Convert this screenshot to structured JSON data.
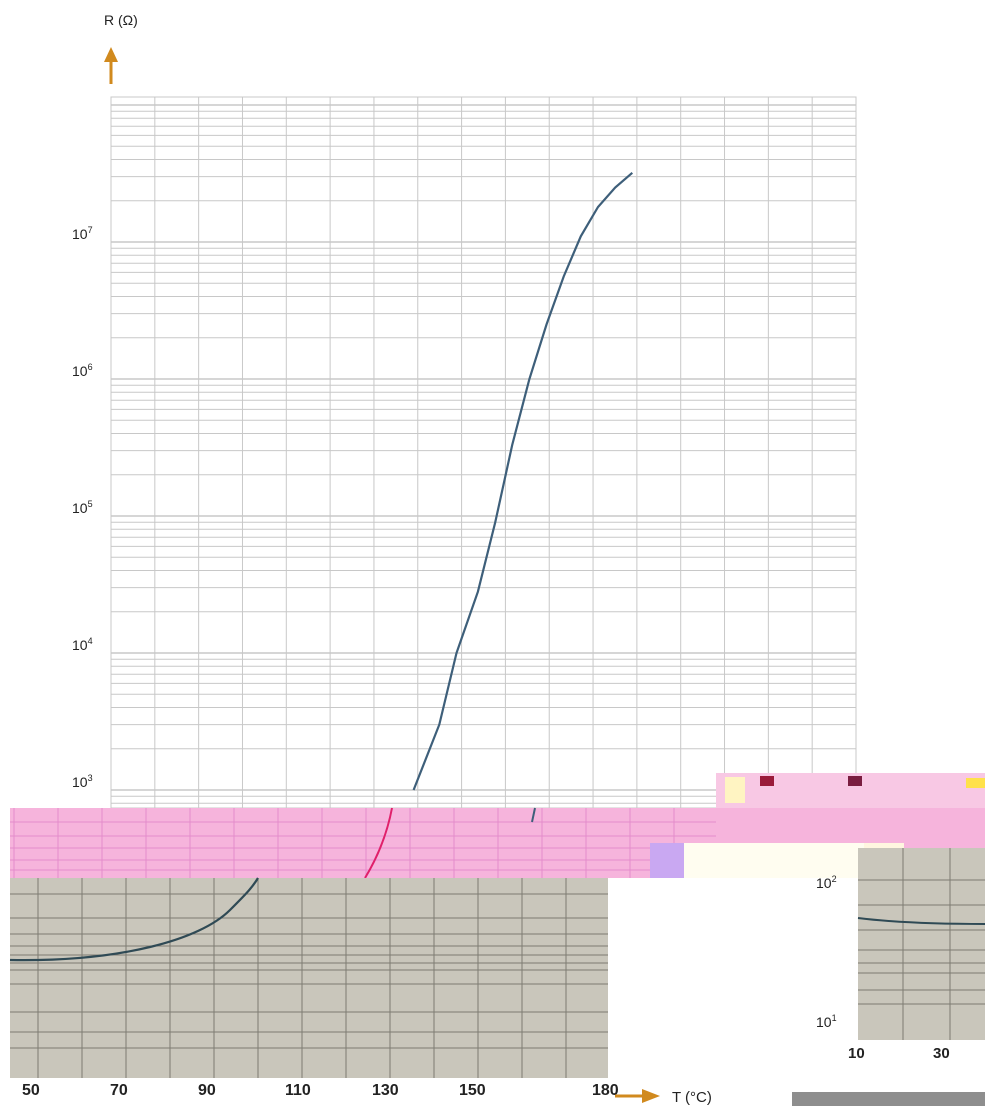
{
  "colors": {
    "arrow": "#d18a1e",
    "grid": "#c8c8c8",
    "curve": "#3e5f7a",
    "pink_band": "#f6b4dc",
    "pink_curve": "#e0206a",
    "gray_panel": "#c9c6bb",
    "gray_grid": "#7d7b72",
    "gray_curve": "#2f4a55"
  },
  "chart_data": [
    {
      "type": "line",
      "ylabel": "R (Ω)",
      "xlabel": "T (°C)",
      "yscale": "log",
      "ylim": [
        1000,
        100000000
      ],
      "xlim": [
        20,
        188
      ],
      "y_ticks": [
        {
          "value": 1000,
          "base": "10",
          "exp": "3"
        },
        {
          "value": 10000,
          "base": "10",
          "exp": "4"
        },
        {
          "value": 100000,
          "base": "10",
          "exp": "5"
        },
        {
          "value": 1000000,
          "base": "10",
          "exp": "6"
        },
        {
          "value": 10000000,
          "base": "10",
          "exp": "7"
        }
      ],
      "x_ticks": [
        50,
        70,
        90,
        110,
        130,
        150,
        180
      ],
      "grid": true,
      "series": [
        {
          "x": [
            137,
            143,
            147,
            152,
            156,
            160,
            164,
            168,
            172,
            176,
            180,
            184,
            188
          ],
          "y": [
            1000,
            3000,
            10000,
            28000,
            89000,
            330000,
            1000000,
            2500000,
            5600000,
            11000000,
            18000000,
            25000000,
            32000000
          ]
        }
      ]
    },
    {
      "type": "line",
      "y_ticks": [
        {
          "value": 10,
          "base": "10",
          "exp": "1"
        },
        {
          "value": 100,
          "base": "10",
          "exp": "2"
        }
      ],
      "x_ticks": [
        10,
        30
      ],
      "series": [
        {
          "x": [
            10,
            20,
            30,
            40
          ],
          "y": [
            85,
            82,
            80,
            80
          ]
        }
      ]
    }
  ]
}
